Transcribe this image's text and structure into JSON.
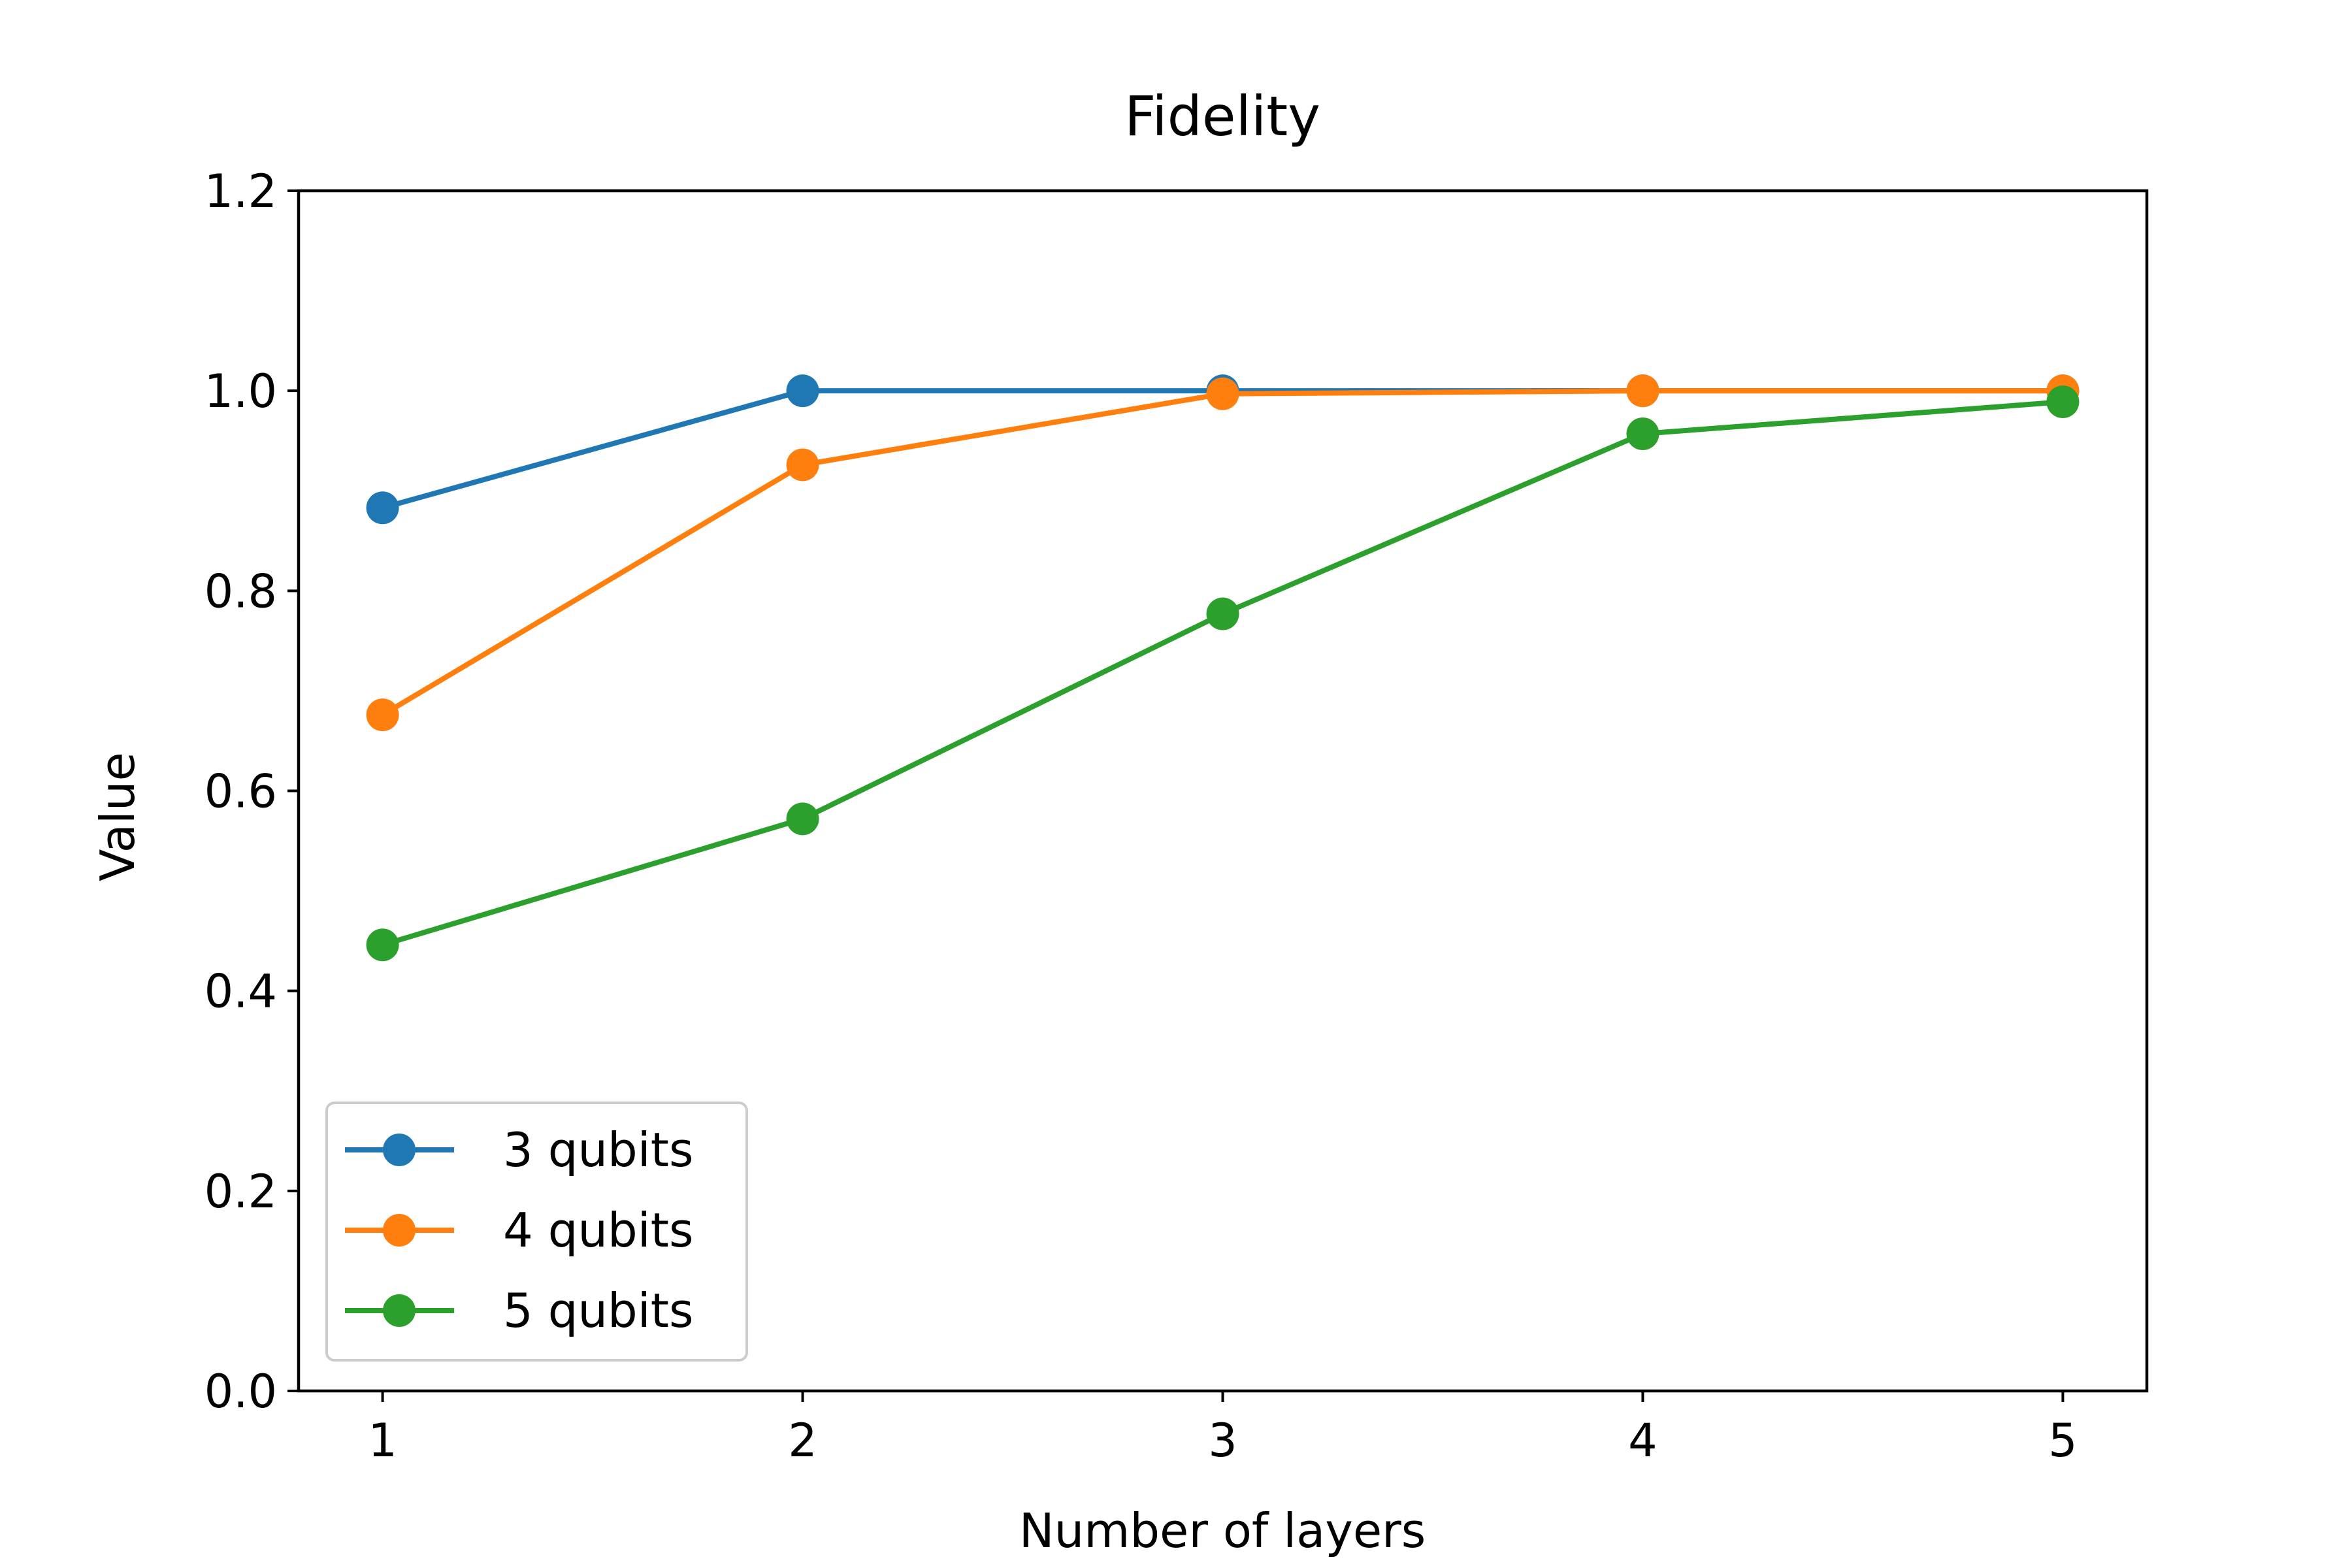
{
  "chart_data": {
    "type": "line",
    "title": "Fidelity",
    "xlabel": "Number of layers",
    "ylabel": "Value",
    "x": [
      1,
      2,
      3,
      4,
      5
    ],
    "xlim": [
      0.8,
      5.2
    ],
    "ylim": [
      0.0,
      1.2
    ],
    "xticks": [
      1,
      2,
      3,
      4,
      5
    ],
    "yticks": [
      0.0,
      0.2,
      0.4,
      0.6,
      0.8,
      1.0,
      1.2
    ],
    "ytick_labels": [
      "0.0",
      "0.2",
      "0.4",
      "0.6",
      "0.8",
      "1.0",
      "1.2"
    ],
    "grid": false,
    "legend_position": "lower-left",
    "series": [
      {
        "name": "3 qubits",
        "color": "#1f77b4",
        "values": [
          0.883,
          1.0,
          1.0,
          1.0,
          1.0
        ]
      },
      {
        "name": "4 qubits",
        "color": "#ff7f0e",
        "values": [
          0.676,
          0.926,
          0.997,
          1.0,
          1.0
        ]
      },
      {
        "name": "5 qubits",
        "color": "#2ca02c",
        "values": [
          0.446,
          0.572,
          0.777,
          0.957,
          0.989
        ]
      }
    ]
  }
}
